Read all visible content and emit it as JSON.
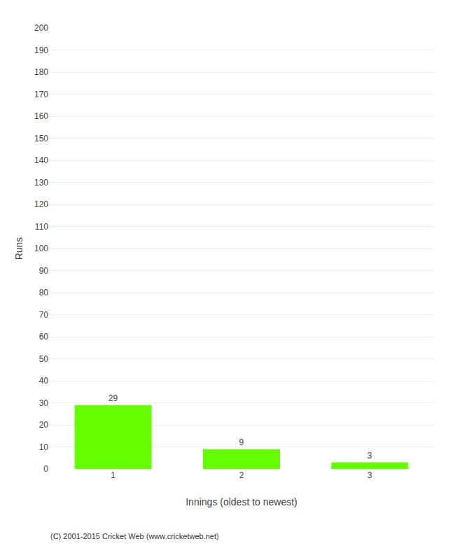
{
  "chart_data": {
    "type": "bar",
    "categories": [
      "1",
      "2",
      "3"
    ],
    "values": [
      29,
      9,
      3
    ],
    "color": "#66ff00",
    "xlabel": "Innings (oldest to newest)",
    "ylabel": "Runs",
    "ylim": [
      0,
      200
    ],
    "yticks": [
      0,
      10,
      20,
      30,
      40,
      50,
      60,
      70,
      80,
      90,
      100,
      110,
      120,
      130,
      140,
      150,
      160,
      170,
      180,
      190,
      200
    ],
    "grid": true,
    "data_labels": true,
    "annotations": [
      "(C) 2001-2015 Cricket Web (www.cricketweb.net)"
    ]
  }
}
